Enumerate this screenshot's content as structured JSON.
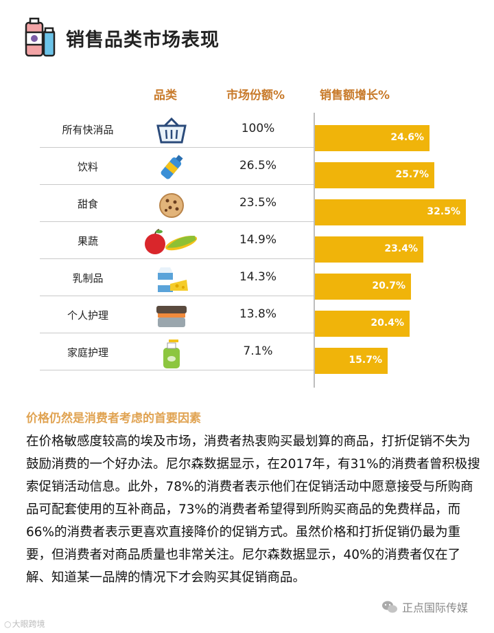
{
  "header": {
    "title": "销售品类市场表现",
    "icon": "cosmetics-bottle-icon"
  },
  "table": {
    "col_category": "品类",
    "col_share": "市场份额%",
    "col_growth": "销售额增长%",
    "rows": [
      {
        "name": "所有快消品",
        "share": "100%",
        "growth": "24.6%",
        "icon": "basket-icon"
      },
      {
        "name": "饮料",
        "share": "26.5%",
        "growth": "25.7%",
        "icon": "bottle-icon"
      },
      {
        "name": "甜食",
        "share": "23.5%",
        "growth": "32.5%",
        "icon": "cookie-icon"
      },
      {
        "name": "果蔬",
        "share": "14.9%",
        "growth": "23.4%",
        "icon": "apple-corn-icon"
      },
      {
        "name": "乳制品",
        "share": "14.3%",
        "growth": "20.7%",
        "icon": "milk-cheese-icon"
      },
      {
        "name": "个人护理",
        "share": "13.8%",
        "growth": "20.4%",
        "icon": "cream-jar-icon"
      },
      {
        "name": "家庭护理",
        "share": "7.1%",
        "growth": "15.7%",
        "icon": "spray-bottle-icon"
      }
    ]
  },
  "chart_data": {
    "type": "bar",
    "categories": [
      "所有快消品",
      "饮料",
      "甜食",
      "果蔬",
      "乳制品",
      "个人护理",
      "家庭护理"
    ],
    "values": [
      24.6,
      25.7,
      32.5,
      23.4,
      20.7,
      20.4,
      15.7
    ],
    "labels": [
      "24.6%",
      "25.7%",
      "32.5%",
      "23.4%",
      "20.7%",
      "20.4%",
      "15.7%"
    ],
    "title": "销售额增长%",
    "orientation": "horizontal",
    "bar_color": "#f0b40a"
  },
  "article": {
    "subheading": "价格仍然是消费者考虑的首要因素",
    "paragraph": "在价格敏感度较高的埃及市场，消费者热衷购买最划算的商品，打折促销不失为鼓励消费的一个好办法。尼尔森数据显示，在2017年，有31%的消费者曾积极搜索促销活动信息。此外，78%的消费者表示他们在促销活动中愿意接受与所购商品可配套使用的互补商品，73%的消费者希望得到所购买商品的免费样品，而66%的消费者表示更喜欢直接降价的促销方式。虽然价格和打折促销仍最为重要，但消费者对商品质量也非常关注。尼尔森数据显示，40%的消费者仅在了解、知道某一品牌的情况下才会购买其促销商品。"
  },
  "watermarks": {
    "left": "大眼跨境",
    "right": "正点国际传媒"
  },
  "colors": {
    "accent": "#f0b40a",
    "header_text": "#c87a2a",
    "subheading": "#e0a352"
  }
}
